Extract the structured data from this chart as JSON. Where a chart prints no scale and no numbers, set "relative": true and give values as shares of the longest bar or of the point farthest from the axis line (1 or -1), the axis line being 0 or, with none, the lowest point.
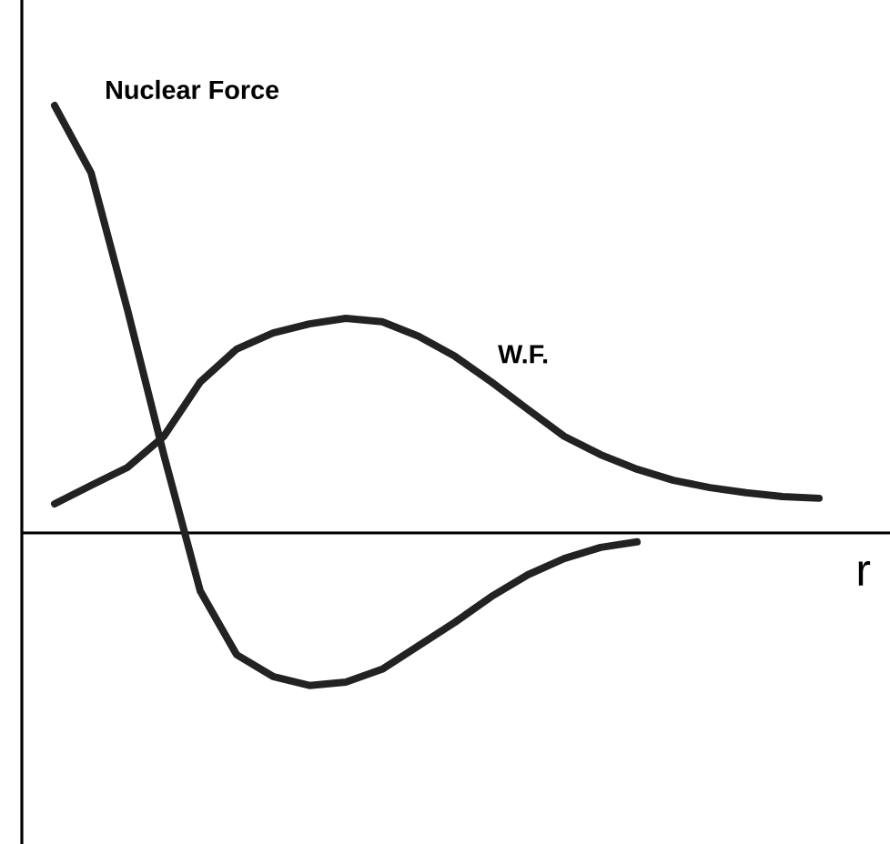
{
  "chart_data": {
    "type": "line",
    "relative": true,
    "xlabel": "r",
    "marker": "none",
    "line_style": "solid",
    "categories": [
      null,
      null,
      null,
      null,
      null,
      null,
      null,
      null,
      null,
      null,
      null,
      null,
      null,
      null,
      null,
      null,
      null,
      null,
      null,
      null,
      null,
      null
    ],
    "series": [
      {
        "name": "Nuclear Force",
        "color": "#222222",
        "values": [
          1.0,
          0.843,
          0.523,
          0.183,
          -0.136,
          -0.285,
          -0.336,
          -0.357,
          -0.349,
          -0.319,
          -0.264,
          -0.209,
          -0.149,
          -0.098,
          -0.06,
          -0.034,
          -0.021,
          null,
          null,
          null,
          null,
          null
        ]
      },
      {
        "name": "W.F.",
        "color": "#222222",
        "values": [
          0.068,
          0.111,
          0.153,
          0.226,
          0.353,
          0.43,
          0.468,
          0.489,
          0.502,
          0.494,
          0.46,
          0.413,
          0.353,
          0.289,
          0.226,
          0.183,
          0.149,
          0.123,
          0.106,
          0.094,
          0.085,
          0.081
        ]
      }
    ]
  }
}
